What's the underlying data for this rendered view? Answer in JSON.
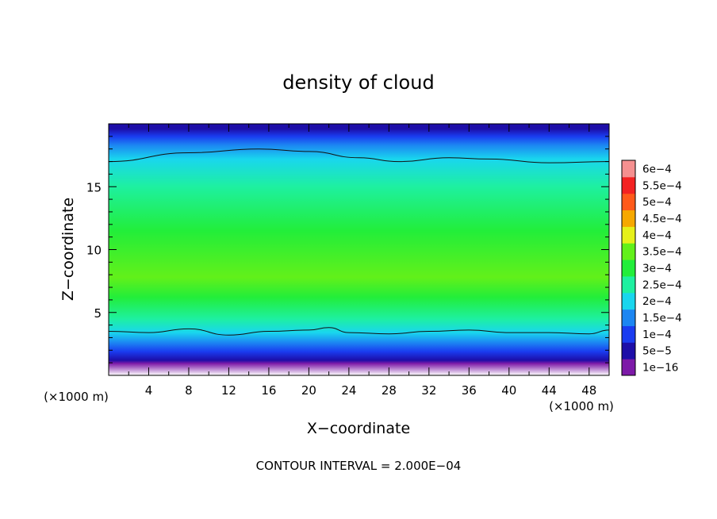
{
  "chart_data": {
    "type": "heatmap",
    "title": "density of cloud",
    "xlabel": "X−coordinate",
    "ylabel": "Z−coordinate",
    "x_unit_left": "(×1000 m)",
    "x_unit_right": "(×1000 m)",
    "xlim": [
      0,
      50
    ],
    "ylim": [
      0,
      20
    ],
    "x_ticks": [
      4,
      8,
      12,
      16,
      20,
      24,
      28,
      32,
      36,
      40,
      44,
      48
    ],
    "y_ticks": [
      5,
      10,
      15
    ],
    "footer": "CONTOUR INTERVAL = 2.000E−04",
    "legend_placement": "right",
    "colorbar": [
      {
        "label": "1e−16",
        "color": "#7d1aa8"
      },
      {
        "label": "5e−5",
        "color": "#1d0ea8"
      },
      {
        "label": "1e−4",
        "color": "#1a3cf0"
      },
      {
        "label": "1.5e−4",
        "color": "#1c86f2"
      },
      {
        "label": "2e−4",
        "color": "#19d6ee"
      },
      {
        "label": "2.5e−4",
        "color": "#1ef0a0"
      },
      {
        "label": "3e−4",
        "color": "#22ee3a"
      },
      {
        "label": "3.5e−4",
        "color": "#62f01a"
      },
      {
        "label": "4e−4",
        "color": "#e6f01a"
      },
      {
        "label": "4.5e−4",
        "color": "#f6a800"
      },
      {
        "label": "5e−4",
        "color": "#ff5a1a"
      },
      {
        "label": "5.5e−4",
        "color": "#f32222"
      },
      {
        "label": "6e−4",
        "color": "#f59090"
      }
    ],
    "vertical_profile": [
      {
        "z": 0.0,
        "level": -1
      },
      {
        "z": 0.95,
        "level": 0
      },
      {
        "z": 1.2,
        "level": 1
      },
      {
        "z": 1.9,
        "level": 2
      },
      {
        "z": 2.6,
        "level": 3
      },
      {
        "z": 3.4,
        "level": 4
      },
      {
        "z": 4.5,
        "level": 5
      },
      {
        "z": 6.2,
        "level": 6
      },
      {
        "z": 7.8,
        "level": 7
      },
      {
        "z": 11.5,
        "level": 6
      },
      {
        "z": 15.0,
        "level": 5
      },
      {
        "z": 17.2,
        "level": 4
      },
      {
        "z": 18.3,
        "level": 3
      },
      {
        "z": 19.0,
        "level": 2
      },
      {
        "z": 19.6,
        "level": 1
      }
    ],
    "contour_lines": [
      {
        "level": "2e−4",
        "x": [
          0,
          8,
          15,
          20,
          25,
          29,
          34,
          38,
          44,
          50
        ],
        "z": [
          17.0,
          17.7,
          18.0,
          17.8,
          17.3,
          17.0,
          17.3,
          17.2,
          16.9,
          17.0
        ]
      },
      {
        "level": "2e−4",
        "x": [
          0,
          4,
          8,
          12,
          16,
          20,
          22,
          24,
          28,
          32,
          36,
          40,
          44,
          48,
          50
        ],
        "z": [
          3.5,
          3.4,
          3.7,
          3.2,
          3.5,
          3.6,
          3.8,
          3.4,
          3.3,
          3.5,
          3.6,
          3.4,
          3.4,
          3.3,
          3.6
        ]
      }
    ]
  }
}
